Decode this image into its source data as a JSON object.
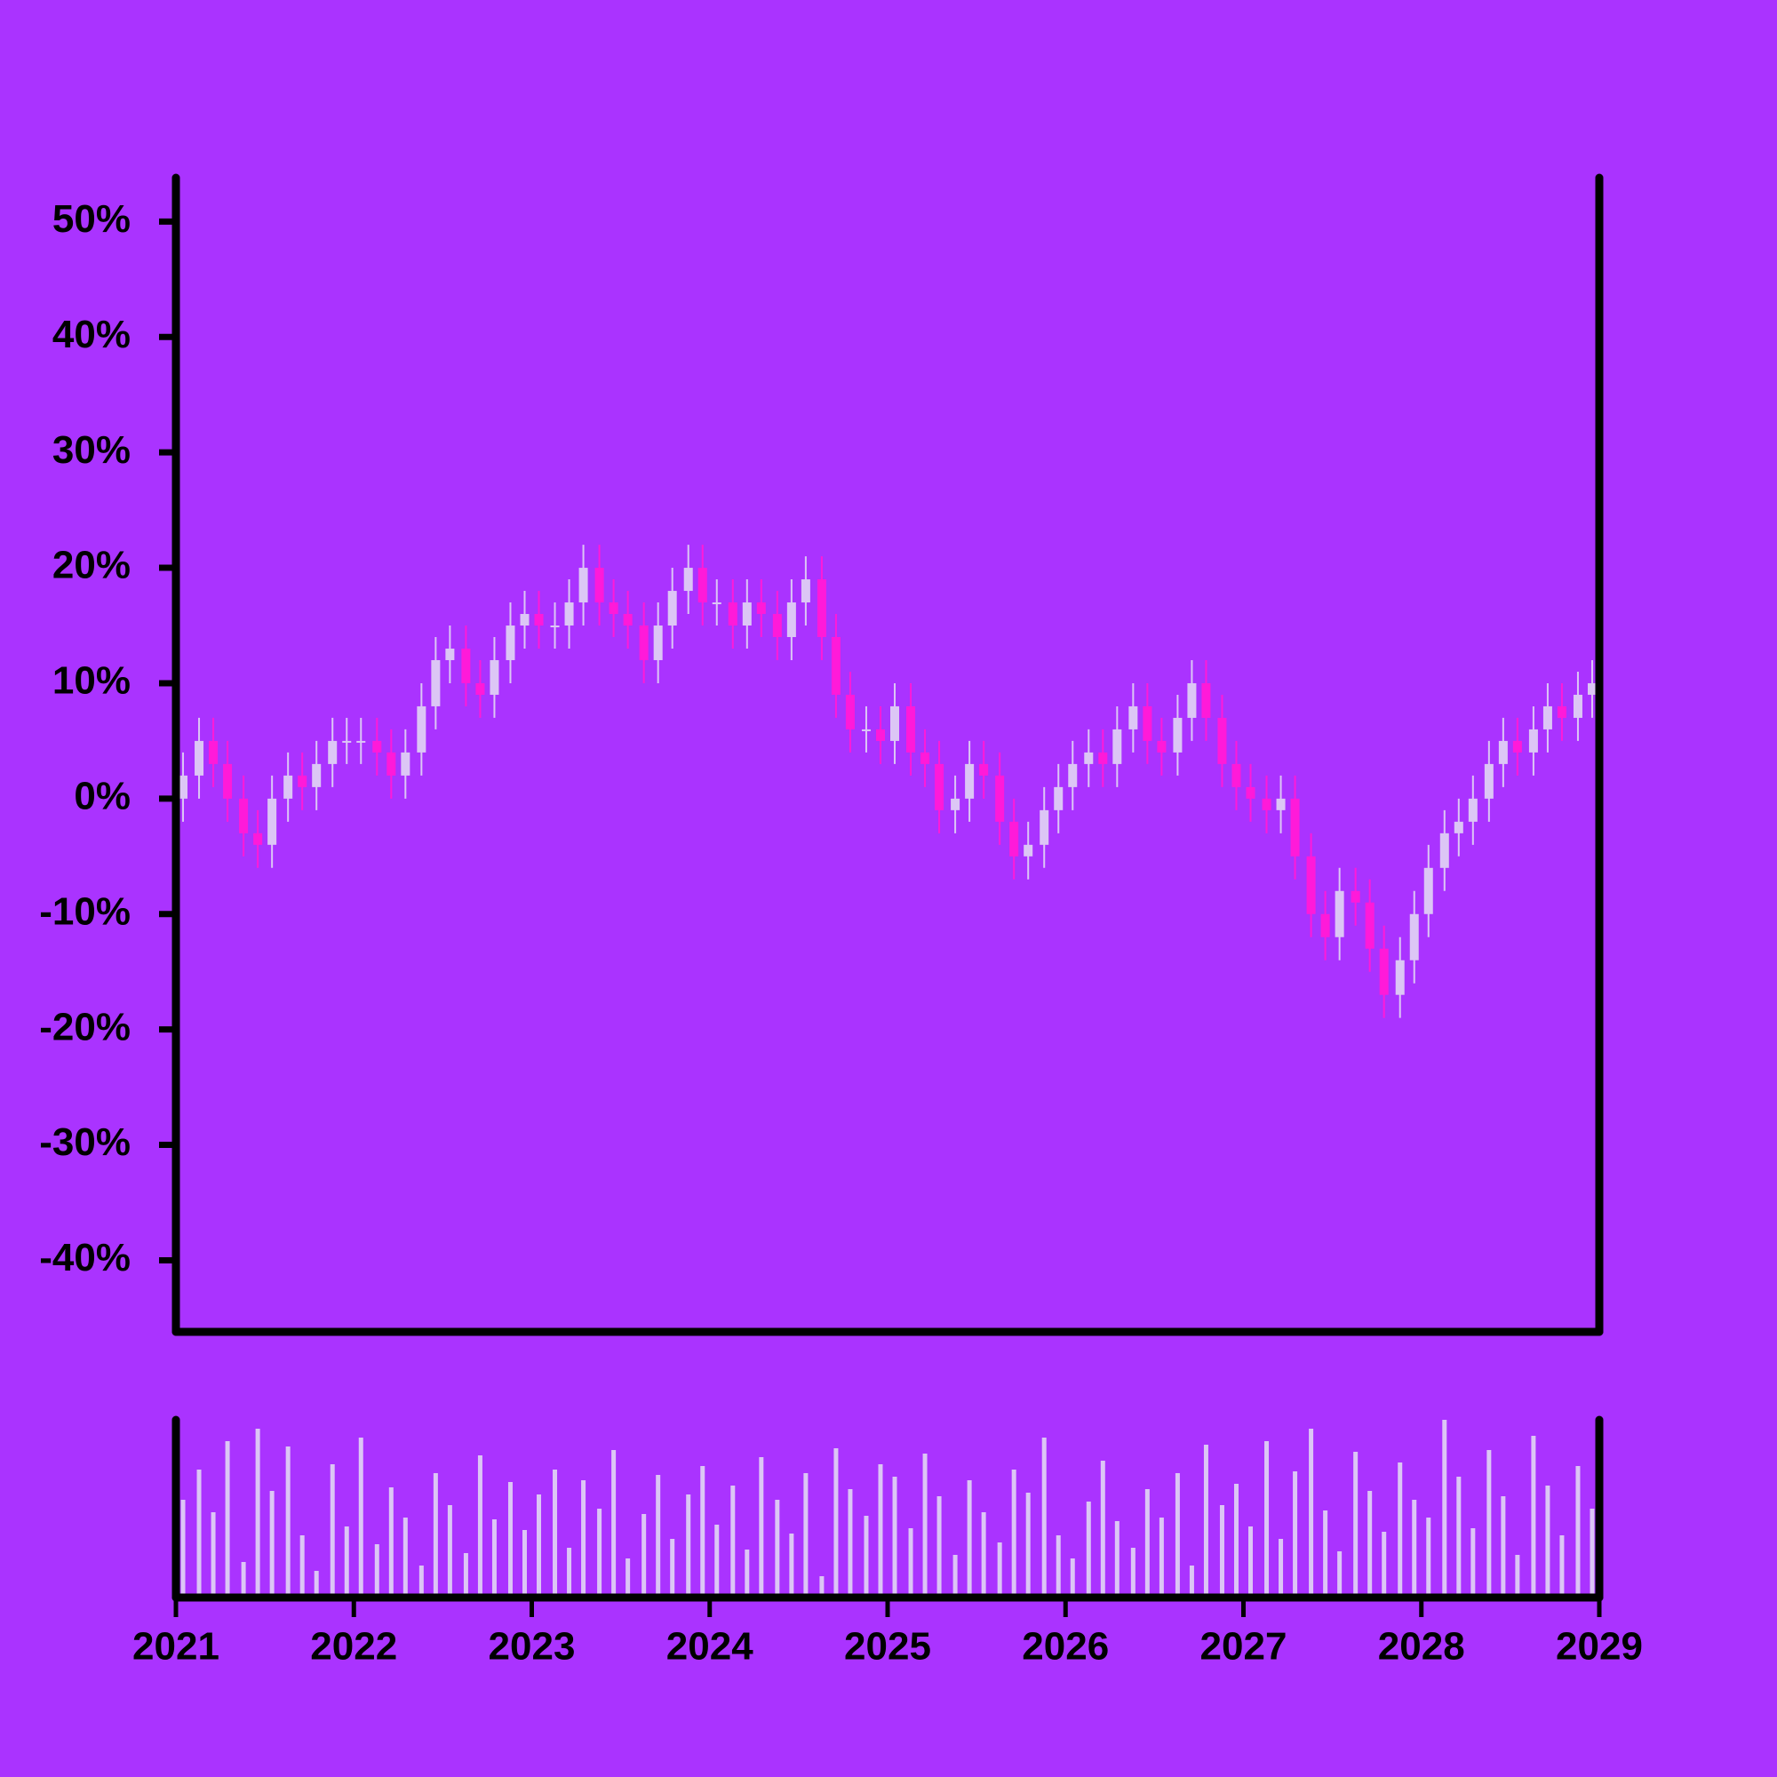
{
  "chart_data": {
    "type": "candlestick",
    "x": [
      2021.04,
      2021.13,
      2021.21,
      2021.29,
      2021.38,
      2021.46,
      2021.54,
      2021.63,
      2021.71,
      2021.79,
      2021.88,
      2021.96,
      2022.04,
      2022.13,
      2022.21,
      2022.29,
      2022.38,
      2022.46,
      2022.54,
      2022.63,
      2022.71,
      2022.79,
      2022.88,
      2022.96,
      2023.04,
      2023.13,
      2023.21,
      2023.29,
      2023.38,
      2023.46,
      2023.54,
      2023.63,
      2023.71,
      2023.79,
      2023.88,
      2023.96,
      2024.04,
      2024.13,
      2024.21,
      2024.29,
      2024.38,
      2024.46,
      2024.54,
      2024.63,
      2024.71,
      2024.79,
      2024.88,
      2024.96,
      2025.04,
      2025.13,
      2025.21,
      2025.29,
      2025.38,
      2025.46,
      2025.54,
      2025.63,
      2025.71,
      2025.79,
      2025.88,
      2025.96,
      2026.04,
      2026.13,
      2026.21,
      2026.29,
      2026.38,
      2026.46,
      2026.54,
      2026.63,
      2026.71,
      2026.79,
      2026.88,
      2026.96,
      2027.04,
      2027.13,
      2027.21,
      2027.29,
      2027.38,
      2027.46,
      2027.54,
      2027.63,
      2027.71,
      2027.79,
      2027.88,
      2027.96,
      2028.04,
      2028.13,
      2028.21,
      2028.29,
      2028.38,
      2028.46,
      2028.54,
      2028.63,
      2028.71,
      2028.79,
      2028.88,
      2028.96
    ],
    "open": [
      0,
      2,
      5,
      3,
      0,
      -3,
      -4,
      0,
      2,
      1,
      3,
      5,
      5,
      5,
      4,
      2,
      4,
      8,
      12,
      13,
      10,
      9,
      12,
      15,
      16,
      15,
      15,
      17,
      20,
      17,
      16,
      15,
      12,
      15,
      18,
      20,
      17,
      17,
      15,
      17,
      16,
      14,
      17,
      19,
      14,
      9,
      6,
      6,
      5,
      8,
      4,
      3,
      -1,
      0,
      3,
      2,
      -2,
      -5,
      -4,
      -1,
      1,
      3,
      4,
      3,
      6,
      8,
      5,
      4,
      7,
      10,
      7,
      3,
      1,
      0,
      -1,
      0,
      -5,
      -10,
      -12,
      -8,
      -9,
      -13,
      -17,
      -14,
      -10,
      -6,
      -3,
      -2,
      0,
      3,
      5,
      4,
      6,
      8,
      7,
      9
    ],
    "high": [
      4,
      7,
      7,
      5,
      2,
      -1,
      2,
      4,
      4,
      5,
      7,
      7,
      7,
      7,
      6,
      6,
      10,
      14,
      15,
      15,
      12,
      14,
      17,
      18,
      18,
      17,
      19,
      22,
      22,
      19,
      18,
      17,
      17,
      20,
      22,
      22,
      19,
      19,
      19,
      19,
      18,
      19,
      21,
      21,
      16,
      11,
      8,
      8,
      10,
      10,
      6,
      5,
      2,
      5,
      5,
      4,
      0,
      -2,
      1,
      3,
      5,
      6,
      6,
      8,
      10,
      10,
      7,
      9,
      12,
      12,
      9,
      5,
      3,
      2,
      2,
      2,
      -3,
      -8,
      -6,
      -6,
      -7,
      -11,
      -12,
      -8,
      -4,
      -1,
      0,
      2,
      5,
      7,
      7,
      8,
      10,
      10,
      11,
      12
    ],
    "low": [
      -2,
      0,
      1,
      -2,
      -5,
      -6,
      -6,
      -2,
      -1,
      -1,
      1,
      3,
      3,
      2,
      0,
      0,
      2,
      6,
      10,
      8,
      7,
      7,
      10,
      13,
      13,
      13,
      13,
      15,
      15,
      14,
      13,
      10,
      10,
      13,
      16,
      15,
      15,
      13,
      13,
      14,
      12,
      12,
      15,
      12,
      7,
      4,
      4,
      3,
      3,
      2,
      1,
      -3,
      -3,
      -2,
      0,
      -4,
      -7,
      -7,
      -6,
      -3,
      -1,
      1,
      1,
      1,
      4,
      3,
      2,
      2,
      5,
      5,
      1,
      -1,
      -2,
      -3,
      -3,
      -7,
      -12,
      -14,
      -14,
      -11,
      -15,
      -19,
      -19,
      -16,
      -12,
      -8,
      -5,
      -4,
      -2,
      1,
      2,
      2,
      4,
      5,
      5,
      7
    ],
    "close": [
      2,
      5,
      3,
      0,
      -3,
      -4,
      0,
      2,
      1,
      3,
      5,
      5,
      5,
      4,
      2,
      4,
      8,
      12,
      13,
      10,
      9,
      12,
      15,
      16,
      15,
      15,
      17,
      20,
      17,
      16,
      15,
      12,
      15,
      18,
      20,
      17,
      17,
      15,
      17,
      16,
      14,
      17,
      19,
      14,
      9,
      6,
      6,
      5,
      8,
      4,
      3,
      -1,
      0,
      3,
      2,
      -2,
      -5,
      -4,
      -1,
      1,
      3,
      4,
      3,
      6,
      8,
      5,
      4,
      7,
      10,
      7,
      3,
      1,
      0,
      -1,
      0,
      -5,
      -10,
      -12,
      -8,
      -9,
      -13,
      -17,
      -14,
      -10,
      -6,
      -3,
      -2,
      0,
      3,
      5,
      4,
      6,
      8,
      7,
      9,
      10
    ],
    "volume": [
      55,
      72,
      48,
      88,
      20,
      95,
      60,
      85,
      35,
      15,
      75,
      40,
      90,
      30,
      62,
      45,
      18,
      70,
      52,
      25,
      80,
      44,
      65,
      38,
      58,
      72,
      28,
      66,
      50,
      83,
      22,
      47,
      69,
      33,
      58,
      74,
      41,
      63,
      27,
      79,
      55,
      36,
      70,
      12,
      84,
      61,
      46,
      75,
      68,
      39,
      81,
      57,
      24,
      66,
      48,
      31,
      72,
      59,
      90,
      35,
      22,
      54,
      77,
      43,
      28,
      61,
      45,
      70,
      18,
      86,
      52,
      64,
      40,
      88,
      33,
      71,
      95,
      49,
      26,
      82,
      60,
      37,
      76,
      55,
      45,
      100,
      68,
      39,
      83,
      57,
      24,
      91,
      63,
      35,
      74,
      50
    ],
    "xlim": [
      2021,
      2029
    ],
    "xticks": [
      2021,
      2022,
      2023,
      2024,
      2025,
      2026,
      2027,
      2028,
      2029
    ],
    "ylim": [
      -46.2,
      53.8
    ],
    "yticks": [
      {
        "value": 50,
        "label": "50%"
      },
      {
        "value": 40,
        "label": "40%"
      },
      {
        "value": 30,
        "label": "30%"
      },
      {
        "value": 20,
        "label": "20%"
      },
      {
        "value": 10,
        "label": "10%"
      },
      {
        "value": 0,
        "label": "0%"
      },
      {
        "value": -10,
        "label": "-10%"
      },
      {
        "value": -20,
        "label": "-20%"
      },
      {
        "value": -30,
        "label": "-30%"
      },
      {
        "value": -40,
        "label": "-40%"
      }
    ],
    "volume_ylim": [
      0,
      100
    ],
    "up_color": "#dcc6f5",
    "down_color": "#ff1ad9",
    "volume_color": "#dcc6f5"
  }
}
